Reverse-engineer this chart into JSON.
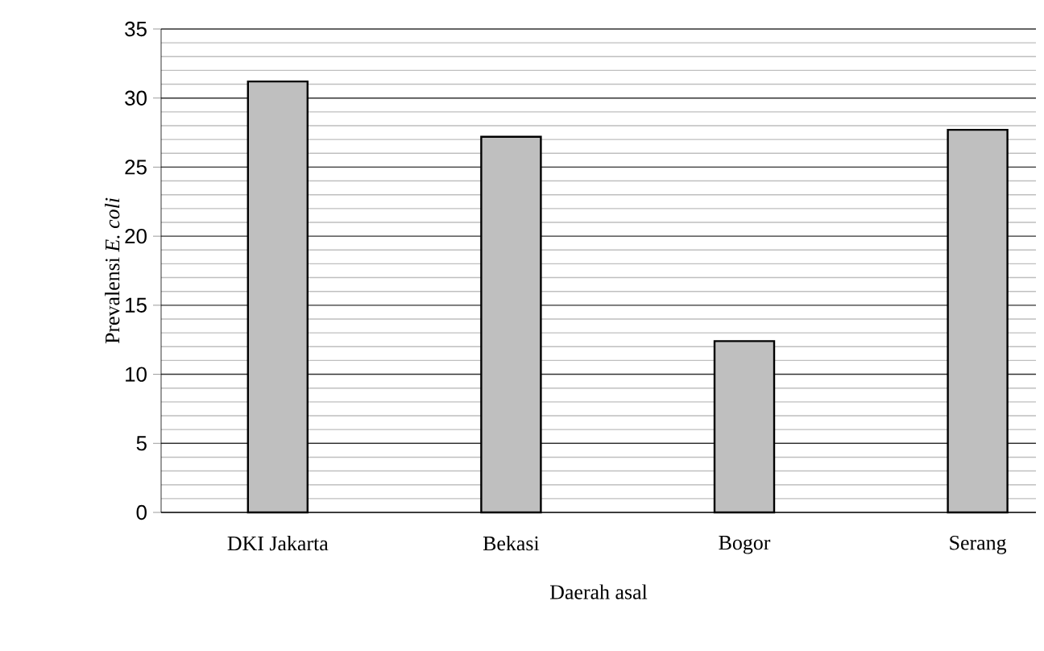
{
  "chart_data": {
    "type": "bar",
    "xlabel": "Daerah asal",
    "ylabel": "Prevalensi *E. coli*",
    "categories": [
      "DKI Jakarta",
      "Bekasi",
      "Bogor",
      "Serang"
    ],
    "values": [
      31.2,
      27.2,
      12.4,
      27.7
    ],
    "color": "#bfbfbf",
    "ylim": [
      0,
      35
    ],
    "yticks": [
      0,
      5,
      10,
      15,
      20,
      25,
      30,
      35
    ],
    "grid": "y"
  }
}
